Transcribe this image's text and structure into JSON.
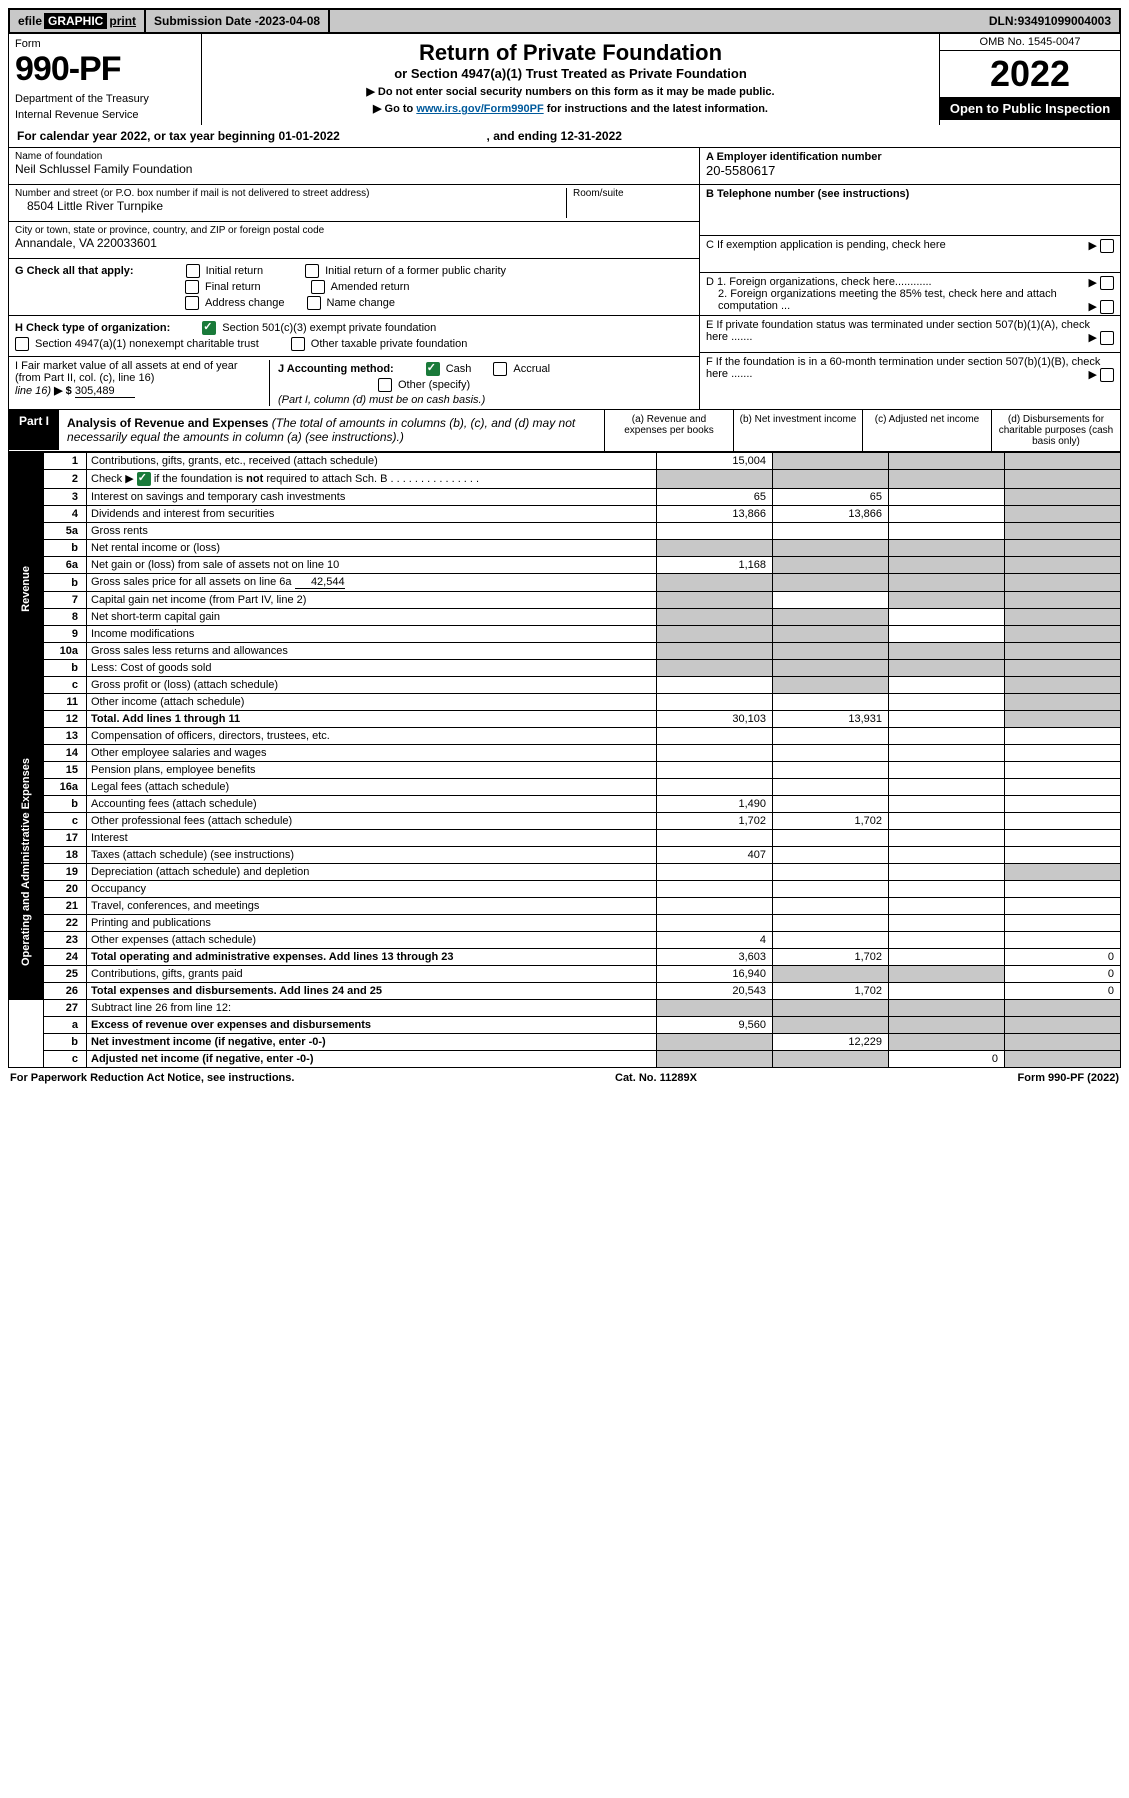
{
  "topbar": {
    "efile_prefix": "efile",
    "efile_word": "GRAPHIC",
    "efile_print": "print",
    "submission_label": "Submission Date - ",
    "submission_date": "2023-04-08",
    "dln_label": "DLN: ",
    "dln": "93491099004003"
  },
  "header": {
    "form_label": "Form",
    "form_number": "990-PF",
    "dept": "Department of the Treasury",
    "irs": "Internal Revenue Service",
    "title": "Return of Private Foundation",
    "subtitle": "or Section 4947(a)(1) Trust Treated as Private Foundation",
    "note1_prefix": "▶ Do not enter social security numbers on this form as it may be made public.",
    "note2_prefix": "▶ Go to ",
    "note2_link": "www.irs.gov/Form990PF",
    "note2_suffix": " for instructions and the latest information.",
    "omb": "OMB No. 1545-0047",
    "year": "2022",
    "inspection": "Open to Public Inspection"
  },
  "calyear": {
    "text_a": "For calendar year 2022, or tax year beginning ",
    "begin": "01-01-2022",
    "text_b": " , and ending ",
    "end": "12-31-2022"
  },
  "entity": {
    "name_label": "Name of foundation",
    "name": "Neil Schlussel Family Foundation",
    "street_label": "Number and street (or P.O. box number if mail is not delivered to street address)",
    "street": "8504 Little River Turnpike",
    "room_label": "Room/suite",
    "room": "",
    "city_label": "City or town, state or province, country, and ZIP or foreign postal code",
    "city": "Annandale, VA  220033601",
    "ein_label": "A Employer identification number",
    "ein": "20-5580617",
    "phone_label": "B Telephone number (see instructions)",
    "phone": "",
    "c_label": "C If exemption application is pending, check here",
    "g_label": "G Check all that apply:",
    "g_opts": [
      "Initial return",
      "Final return",
      "Address change",
      "Initial return of a former public charity",
      "Amended return",
      "Name change"
    ],
    "h_label": "H Check type of organization:",
    "h_opt1": "Section 501(c)(3) exempt private foundation",
    "h_opt2": "Section 4947(a)(1) nonexempt charitable trust",
    "h_opt3": "Other taxable private foundation",
    "i_label": "I Fair market value of all assets at end of year (from Part II, col. (c), line 16)",
    "i_prefix": "▶ $",
    "i_value": "305,489",
    "j_label": "J Accounting method:",
    "j_cash": "Cash",
    "j_accrual": "Accrual",
    "j_other": "Other (specify)",
    "j_note": "(Part I, column (d) must be on cash basis.)",
    "d1": "D 1. Foreign organizations, check here............",
    "d2": "2. Foreign organizations meeting the 85% test, check here and attach computation ...",
    "e": "E  If private foundation status was terminated under section 507(b)(1)(A), check here .......",
    "f": "F  If the foundation is in a 60-month termination under section 507(b)(1)(B), check here .......",
    "arrow": "▶"
  },
  "part1": {
    "label": "Part I",
    "title": "Analysis of Revenue and Expenses",
    "title_note": " (The total of amounts in columns (b), (c), and (d) may not necessarily equal the amounts in column (a) (see instructions).)",
    "col_a": "(a)   Revenue and expenses per books",
    "col_b": "(b)   Net investment income",
    "col_c": "(c)   Adjusted net income",
    "col_d": "(d)  Disbursements for charitable purposes (cash basis only)"
  },
  "sidelabels": {
    "revenue": "Revenue",
    "opex": "Operating and Administrative Expenses"
  },
  "rows": {
    "r1": {
      "n": "1",
      "d": "Contributions, gifts, grants, etc., received (attach schedule)",
      "a": "15,004",
      "b": "",
      "c": "",
      "dv": "",
      "ash": false,
      "bsh": true,
      "csh": true,
      "dsh": true
    },
    "r2": {
      "n": "2",
      "d": "Check ▶ ☑ if the foundation is not required to attach Sch. B",
      "a": "",
      "b": "",
      "c": "",
      "dv": "",
      "ash": true,
      "bsh": true,
      "csh": true,
      "dsh": true
    },
    "r3": {
      "n": "3",
      "d": "Interest on savings and temporary cash investments",
      "a": "65",
      "b": "65",
      "c": "",
      "dv": "",
      "ash": false,
      "bsh": false,
      "csh": false,
      "dsh": true
    },
    "r4": {
      "n": "4",
      "d": "Dividends and interest from securities",
      "a": "13,866",
      "b": "13,866",
      "c": "",
      "dv": "",
      "ash": false,
      "bsh": false,
      "csh": false,
      "dsh": true
    },
    "r5a": {
      "n": "5a",
      "d": "Gross rents",
      "a": "",
      "b": "",
      "c": "",
      "dv": "",
      "ash": false,
      "bsh": false,
      "csh": false,
      "dsh": true
    },
    "r5b": {
      "n": "b",
      "d": "Net rental income or (loss)",
      "a": "",
      "b": "",
      "c": "",
      "dv": "",
      "ash": true,
      "bsh": true,
      "csh": true,
      "dsh": true
    },
    "r6a": {
      "n": "6a",
      "d": "Net gain or (loss) from sale of assets not on line 10",
      "a": "1,168",
      "b": "",
      "c": "",
      "dv": "",
      "ash": false,
      "bsh": true,
      "csh": true,
      "dsh": true
    },
    "r6b": {
      "n": "b",
      "d": "Gross sales price for all assets on line 6a",
      "v": "42,544",
      "a": "",
      "b": "",
      "c": "",
      "dv": "",
      "ash": true,
      "bsh": true,
      "csh": true,
      "dsh": true
    },
    "r7": {
      "n": "7",
      "d": "Capital gain net income (from Part IV, line 2)",
      "a": "",
      "b": "",
      "c": "",
      "dv": "",
      "ash": true,
      "bsh": false,
      "csh": true,
      "dsh": true
    },
    "r8": {
      "n": "8",
      "d": "Net short-term capital gain",
      "a": "",
      "b": "",
      "c": "",
      "dv": "",
      "ash": true,
      "bsh": true,
      "csh": false,
      "dsh": true
    },
    "r9": {
      "n": "9",
      "d": "Income modifications",
      "a": "",
      "b": "",
      "c": "",
      "dv": "",
      "ash": true,
      "bsh": true,
      "csh": false,
      "dsh": true
    },
    "r10a": {
      "n": "10a",
      "d": "Gross sales less returns and allowances",
      "a": "",
      "b": "",
      "c": "",
      "dv": "",
      "ash": true,
      "bsh": true,
      "csh": true,
      "dsh": true
    },
    "r10b": {
      "n": "b",
      "d": "Less: Cost of goods sold",
      "a": "",
      "b": "",
      "c": "",
      "dv": "",
      "ash": true,
      "bsh": true,
      "csh": true,
      "dsh": true
    },
    "r10c": {
      "n": "c",
      "d": "Gross profit or (loss) (attach schedule)",
      "a": "",
      "b": "",
      "c": "",
      "dv": "",
      "ash": false,
      "bsh": true,
      "csh": false,
      "dsh": true
    },
    "r11": {
      "n": "11",
      "d": "Other income (attach schedule)",
      "a": "",
      "b": "",
      "c": "",
      "dv": "",
      "ash": false,
      "bsh": false,
      "csh": false,
      "dsh": true
    },
    "r12": {
      "n": "12",
      "d": "Total. Add lines 1 through 11",
      "bold": true,
      "a": "30,103",
      "b": "13,931",
      "c": "",
      "dv": "",
      "ash": false,
      "bsh": false,
      "csh": false,
      "dsh": true
    },
    "r13": {
      "n": "13",
      "d": "Compensation of officers, directors, trustees, etc.",
      "a": "",
      "b": "",
      "c": "",
      "dv": "",
      "ash": false,
      "bsh": false,
      "csh": false,
      "dsh": false
    },
    "r14": {
      "n": "14",
      "d": "Other employee salaries and wages",
      "a": "",
      "b": "",
      "c": "",
      "dv": "",
      "ash": false,
      "bsh": false,
      "csh": false,
      "dsh": false
    },
    "r15": {
      "n": "15",
      "d": "Pension plans, employee benefits",
      "a": "",
      "b": "",
      "c": "",
      "dv": "",
      "ash": false,
      "bsh": false,
      "csh": false,
      "dsh": false
    },
    "r16a": {
      "n": "16a",
      "d": "Legal fees (attach schedule)",
      "a": "",
      "b": "",
      "c": "",
      "dv": "",
      "ash": false,
      "bsh": false,
      "csh": false,
      "dsh": false
    },
    "r16b": {
      "n": "b",
      "d": "Accounting fees (attach schedule)",
      "a": "1,490",
      "b": "",
      "c": "",
      "dv": "",
      "ash": false,
      "bsh": false,
      "csh": false,
      "dsh": false
    },
    "r16c": {
      "n": "c",
      "d": "Other professional fees (attach schedule)",
      "a": "1,702",
      "b": "1,702",
      "c": "",
      "dv": "",
      "ash": false,
      "bsh": false,
      "csh": false,
      "dsh": false
    },
    "r17": {
      "n": "17",
      "d": "Interest",
      "a": "",
      "b": "",
      "c": "",
      "dv": "",
      "ash": false,
      "bsh": false,
      "csh": false,
      "dsh": false
    },
    "r18": {
      "n": "18",
      "d": "Taxes (attach schedule) (see instructions)",
      "a": "407",
      "b": "",
      "c": "",
      "dv": "",
      "ash": false,
      "bsh": false,
      "csh": false,
      "dsh": false
    },
    "r19": {
      "n": "19",
      "d": "Depreciation (attach schedule) and depletion",
      "a": "",
      "b": "",
      "c": "",
      "dv": "",
      "ash": false,
      "bsh": false,
      "csh": false,
      "dsh": true
    },
    "r20": {
      "n": "20",
      "d": "Occupancy",
      "a": "",
      "b": "",
      "c": "",
      "dv": "",
      "ash": false,
      "bsh": false,
      "csh": false,
      "dsh": false
    },
    "r21": {
      "n": "21",
      "d": "Travel, conferences, and meetings",
      "a": "",
      "b": "",
      "c": "",
      "dv": "",
      "ash": false,
      "bsh": false,
      "csh": false,
      "dsh": false
    },
    "r22": {
      "n": "22",
      "d": "Printing and publications",
      "a": "",
      "b": "",
      "c": "",
      "dv": "",
      "ash": false,
      "bsh": false,
      "csh": false,
      "dsh": false
    },
    "r23": {
      "n": "23",
      "d": "Other expenses (attach schedule)",
      "a": "4",
      "b": "",
      "c": "",
      "dv": "",
      "ash": false,
      "bsh": false,
      "csh": false,
      "dsh": false
    },
    "r24": {
      "n": "24",
      "d": "Total operating and administrative expenses. Add lines 13 through 23",
      "bold": true,
      "a": "3,603",
      "b": "1,702",
      "c": "",
      "dv": "0",
      "ash": false,
      "bsh": false,
      "csh": false,
      "dsh": false
    },
    "r25": {
      "n": "25",
      "d": "Contributions, gifts, grants paid",
      "a": "16,940",
      "b": "",
      "c": "",
      "dv": "0",
      "ash": false,
      "bsh": true,
      "csh": true,
      "dsh": false
    },
    "r26": {
      "n": "26",
      "d": "Total expenses and disbursements. Add lines 24 and 25",
      "bold": true,
      "a": "20,543",
      "b": "1,702",
      "c": "",
      "dv": "0",
      "ash": false,
      "bsh": false,
      "csh": false,
      "dsh": false
    },
    "r27": {
      "n": "27",
      "d": "Subtract line 26 from line 12:",
      "a": "",
      "b": "",
      "c": "",
      "dv": "",
      "ash": true,
      "bsh": true,
      "csh": true,
      "dsh": true
    },
    "r27a": {
      "n": "a",
      "d": "Excess of revenue over expenses and disbursements",
      "bold": true,
      "a": "9,560",
      "b": "",
      "c": "",
      "dv": "",
      "ash": false,
      "bsh": true,
      "csh": true,
      "dsh": true
    },
    "r27b": {
      "n": "b",
      "d": "Net investment income (if negative, enter -0-)",
      "bold": true,
      "a": "",
      "b": "12,229",
      "c": "",
      "dv": "",
      "ash": true,
      "bsh": false,
      "csh": true,
      "dsh": true
    },
    "r27c": {
      "n": "c",
      "d": "Adjusted net income (if negative, enter -0-)",
      "bold": true,
      "a": "",
      "b": "",
      "c": "0",
      "dv": "",
      "ash": true,
      "bsh": true,
      "csh": false,
      "dsh": true
    }
  },
  "footer": {
    "left": "For Paperwork Reduction Act Notice, see instructions.",
    "mid": "Cat. No. 11289X",
    "right": "Form 990-PF (2022)"
  }
}
